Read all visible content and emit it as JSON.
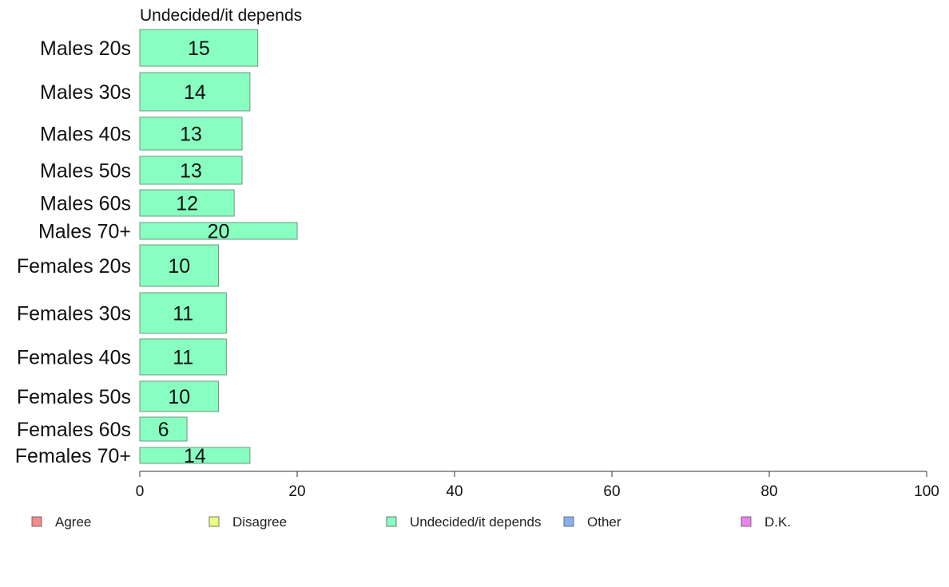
{
  "chart_data": {
    "type": "bar",
    "orientation": "horizontal",
    "title": "Undecided/it depends",
    "categories": [
      "Males 20s",
      "Males 30s",
      "Males 40s",
      "Males 50s",
      "Males 60s",
      "Males 70+",
      "Females 20s",
      "Females 30s",
      "Females 40s",
      "Females 50s",
      "Females 60s",
      "Females 70+"
    ],
    "values": [
      15,
      14,
      13,
      13,
      12,
      20,
      10,
      11,
      11,
      10,
      6,
      14
    ],
    "bar_color": "#88ffc0",
    "xlim": [
      0,
      100
    ],
    "xticks": [
      "0",
      "20",
      "40",
      "60",
      "80",
      "100"
    ],
    "grid": false,
    "legend_position": "bottom",
    "legend": [
      {
        "label": "Agree",
        "color": "#f58a8a"
      },
      {
        "label": "Disagree",
        "color": "#ecff80"
      },
      {
        "label": "Undecided/it depends",
        "color": "#88ffc0"
      },
      {
        "label": "Other",
        "color": "#88b0f0"
      },
      {
        "label": "D.K.",
        "color": "#ee80f0"
      }
    ]
  }
}
